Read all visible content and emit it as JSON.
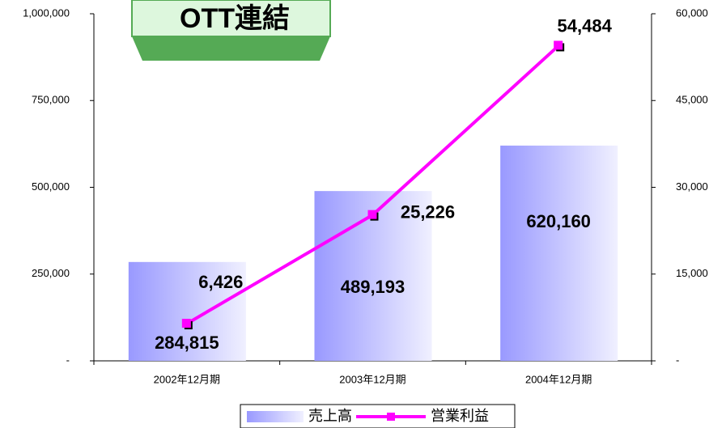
{
  "chart_data": {
    "type": "bar-line",
    "title": "OTT連結",
    "categories": [
      "2002年12月期",
      "2003年12月期",
      "2004年12月期"
    ],
    "series": [
      {
        "name": "売上高",
        "type": "bar",
        "color": "#9999ff",
        "values": [
          284815,
          489193,
          620160
        ],
        "value_labels": [
          "284,815",
          "489,193",
          "620,160"
        ]
      },
      {
        "name": "営業利益",
        "type": "line",
        "axis": "y2",
        "color": "#ff00ff",
        "values": [
          6426,
          25226,
          54484
        ],
        "value_labels": [
          "6,426",
          "25,226",
          "54,484"
        ]
      }
    ],
    "ylim": [
      0,
      1000000
    ],
    "yticks": [
      {
        "value": 0,
        "label": "-"
      },
      {
        "value": 250000,
        "label": "250,000"
      },
      {
        "value": 500000,
        "label": "500,000"
      },
      {
        "value": 750000,
        "label": "750,000"
      },
      {
        "value": 1000000,
        "label": "1,000,000"
      }
    ],
    "y2lim": [
      0,
      60000
    ],
    "y2ticks": [
      {
        "value": 0,
        "label": "-"
      },
      {
        "value": 15000,
        "label": "15,000"
      },
      {
        "value": 30000,
        "label": "30,000"
      },
      {
        "value": 45000,
        "label": "45,000"
      },
      {
        "value": 60000,
        "label": "60,000"
      }
    ],
    "legend": "bottom"
  }
}
